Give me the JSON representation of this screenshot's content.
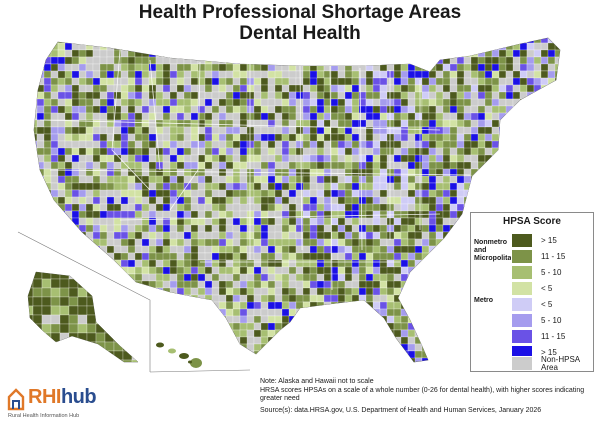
{
  "title_line1": "Health Professional Shortage Areas",
  "title_line2": "Dental Health",
  "legend": {
    "title": "HPSA Score",
    "group_nonmetro": "Nonmetro and Micropolitan",
    "group_metro": "Metro",
    "items": [
      {
        "label": "> 15",
        "color": "#4d5a1e"
      },
      {
        "label": "11 - 15",
        "color": "#7d9348"
      },
      {
        "label": "5 - 10",
        "color": "#a7bf72"
      },
      {
        "label": "< 5",
        "color": "#d2e2a4"
      },
      {
        "label": "< 5",
        "color": "#cfccf6"
      },
      {
        "label": "5 - 10",
        "color": "#a59cee"
      },
      {
        "label": "11 - 15",
        "color": "#6a52e6"
      },
      {
        "label": "> 15",
        "color": "#1b10e6"
      },
      {
        "label": "Non-HPSA Area",
        "color": "#cccccc"
      }
    ]
  },
  "notes": {
    "line1": "Note: Alaska and Hawaii not to scale",
    "line2": "HRSA scores HPSAs on a scale of a whole number (0-26 for dental health), with higher scores indicating greater need",
    "source": "Source(s): data.HRSA.gov, U.S. Department of Health and Human Services, January 2026"
  },
  "logo": {
    "brand_rhi": "RHI",
    "brand_hub": "hub",
    "subtitle": "Rural Health Information Hub"
  }
}
